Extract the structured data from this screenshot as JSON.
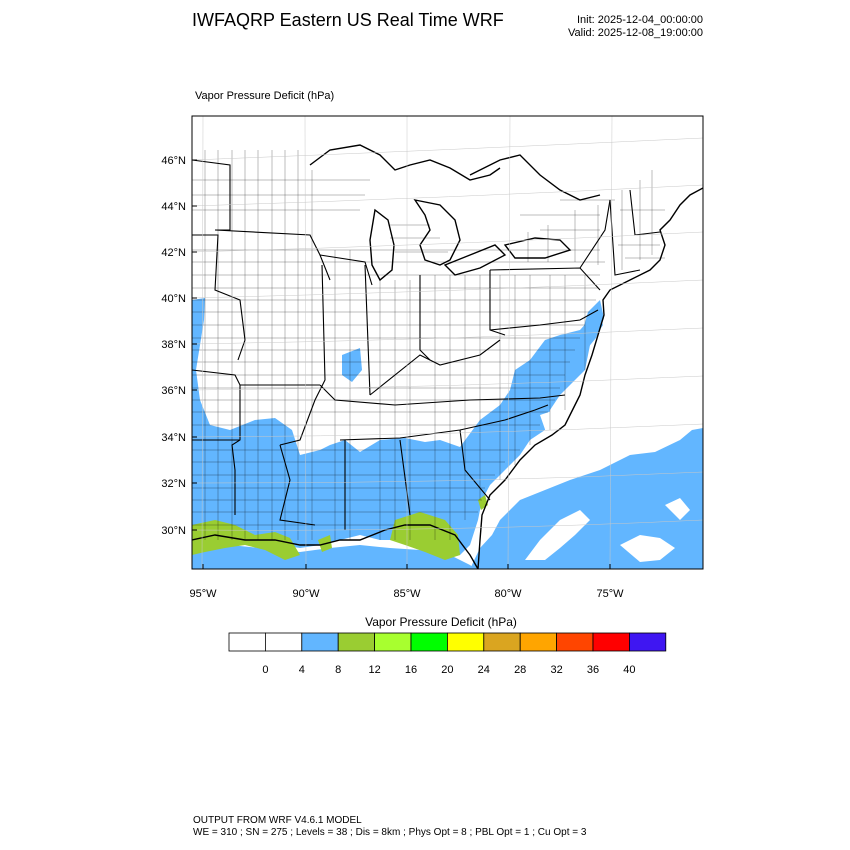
{
  "header": {
    "title": "IWFAQRP Eastern US Real Time WRF",
    "init": "Init: 2025-12-04_00:00:00",
    "valid": "Valid: 2025-12-08_19:00:00"
  },
  "field_label": "Vapor Pressure Deficit   (hPa)",
  "map": {
    "lat_labels": [
      "46°N",
      "44°N",
      "42°N",
      "40°N",
      "38°N",
      "36°N",
      "34°N",
      "32°N",
      "30°N"
    ],
    "lon_labels": [
      "95°W",
      "90°W",
      "85°W",
      "80°W",
      "75°W"
    ]
  },
  "colorbar": {
    "title": "Vapor Pressure Deficit  (hPa)",
    "colors": [
      "#ffffff",
      "#ffffff",
      "#62b6ff",
      "#9acd32",
      "#a8ff2f",
      "#00ff00",
      "#ffff00",
      "#daa520",
      "#ffa500",
      "#ff4500",
      "#ff0000",
      "#3f16f2"
    ],
    "labels": [
      "0",
      "4",
      "8",
      "12",
      "16",
      "20",
      "24",
      "28",
      "32",
      "36",
      "40"
    ]
  },
  "footer": {
    "line1": "OUTPUT FROM WRF V4.6.1 MODEL",
    "line2": "WE = 310 ; SN = 275 ; Levels = 38 ; Dis = 8km ; Phys Opt = 8 ; PBL Opt = 1 ; Cu Opt = 3"
  }
}
